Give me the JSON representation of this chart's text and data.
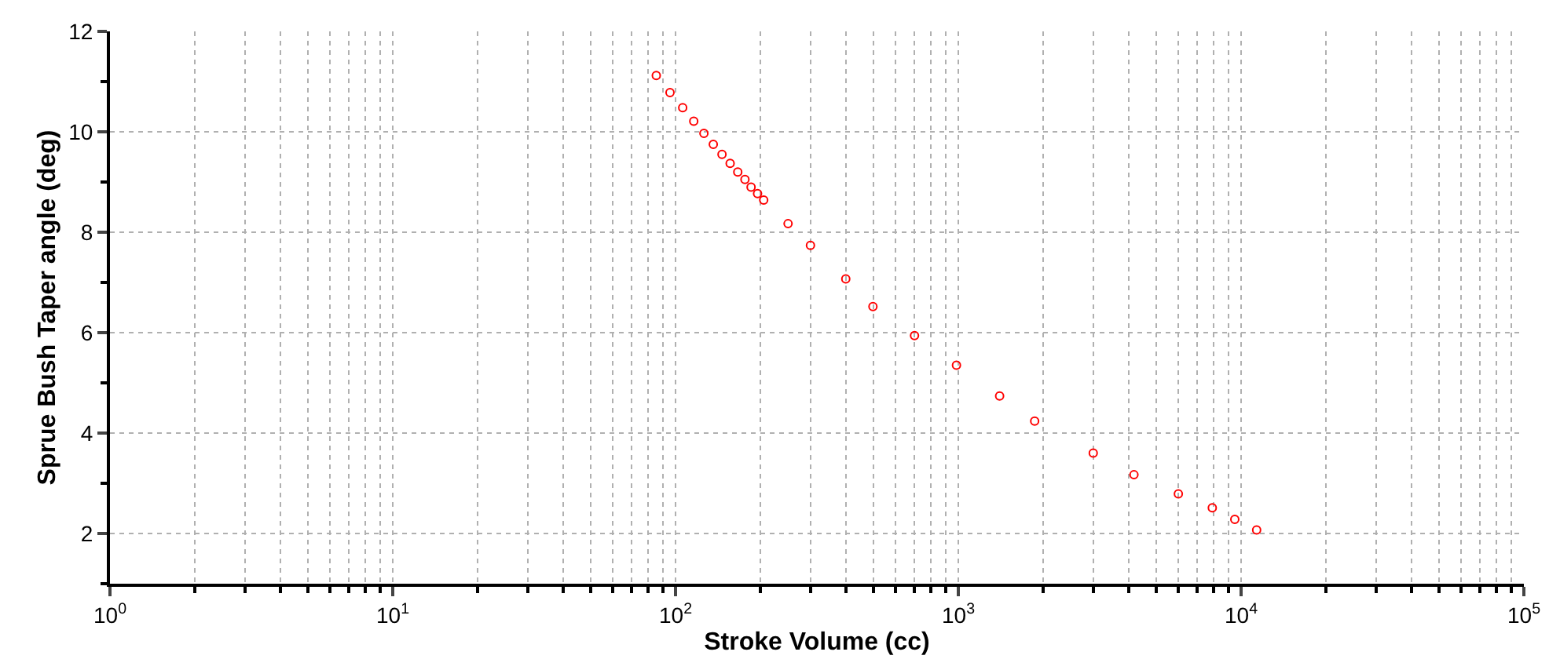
{
  "chart_data": {
    "type": "scatter",
    "xlabel": "Stroke Volume (cc)",
    "ylabel": "Sprue Bush Taper angle (deg)",
    "x": [
      85.5,
      95.6,
      106,
      116,
      126,
      136,
      146,
      156,
      166,
      176,
      185,
      195,
      205,
      250,
      300,
      400,
      499,
      700,
      985,
      1400,
      1862,
      3000,
      4180,
      6000,
      7910,
      9500,
      11350
    ],
    "series": [
      {
        "color": "#ff0000",
        "values": [
          11.12,
          10.78,
          10.48,
          10.21,
          9.97,
          9.75,
          9.55,
          9.37,
          9.2,
          9.05,
          8.9,
          8.77,
          8.64,
          8.17,
          7.74,
          7.07,
          6.52,
          5.94,
          5.35,
          4.74,
          4.24,
          3.6,
          3.17,
          2.79,
          2.51,
          2.28,
          2.07
        ]
      }
    ],
    "xlim": [
      1,
      100000
    ],
    "ylim": [
      1,
      12
    ],
    "log": "x",
    "grid": true,
    "marker": "circle",
    "xticks": [
      {
        "value": 1,
        "label": "10$^{0}$"
      },
      {
        "value": 2,
        "label": null
      },
      {
        "value": 3,
        "label": null
      },
      {
        "value": 4,
        "label": null
      },
      {
        "value": 5,
        "label": null
      },
      {
        "value": 6,
        "label": null
      },
      {
        "value": 7,
        "label": null
      },
      {
        "value": 8,
        "label": null
      },
      {
        "value": 9,
        "label": null
      },
      {
        "value": 10,
        "label": "10$^{1}$"
      },
      {
        "value": 20,
        "label": null
      },
      {
        "value": 30,
        "label": null
      },
      {
        "value": 40,
        "label": null
      },
      {
        "value": 50,
        "label": null
      },
      {
        "value": 60,
        "label": null
      },
      {
        "value": 70,
        "label": null
      },
      {
        "value": 80,
        "label": null
      },
      {
        "value": 90,
        "label": null
      },
      {
        "value": 100,
        "label": "10$^{2}$"
      },
      {
        "value": 200,
        "label": null
      },
      {
        "value": 300,
        "label": null
      },
      {
        "value": 400,
        "label": null
      },
      {
        "value": 500,
        "label": null
      },
      {
        "value": 600,
        "label": null
      },
      {
        "value": 700,
        "label": null
      },
      {
        "value": 800,
        "label": null
      },
      {
        "value": 900,
        "label": null
      },
      {
        "value": 1000,
        "label": "10$^{3}$"
      },
      {
        "value": 2000,
        "label": null
      },
      {
        "value": 3000,
        "label": null
      },
      {
        "value": 4000,
        "label": null
      },
      {
        "value": 5000,
        "label": null
      },
      {
        "value": 6000,
        "label": null
      },
      {
        "value": 7000,
        "label": null
      },
      {
        "value": 8000,
        "label": null
      },
      {
        "value": 9000,
        "label": null
      },
      {
        "value": 10000,
        "label": "10$^{4}$"
      },
      {
        "value": 20000,
        "label": null
      },
      {
        "value": 30000,
        "label": null
      },
      {
        "value": 40000,
        "label": null
      },
      {
        "value": 50000,
        "label": null
      },
      {
        "value": 60000,
        "label": null
      },
      {
        "value": 70000,
        "label": null
      },
      {
        "value": 80000,
        "label": null
      },
      {
        "value": 90000,
        "label": null
      },
      {
        "value": 100000,
        "label": "10$^{5}$"
      }
    ],
    "yticks": [
      {
        "value": 1,
        "label": null
      },
      2,
      {
        "value": 3,
        "label": null
      },
      4,
      {
        "value": 5,
        "label": null
      },
      6,
      {
        "value": 7,
        "label": null
      },
      8,
      {
        "value": 9,
        "label": null
      },
      10,
      {
        "value": 11,
        "label": null
      },
      12
    ]
  }
}
